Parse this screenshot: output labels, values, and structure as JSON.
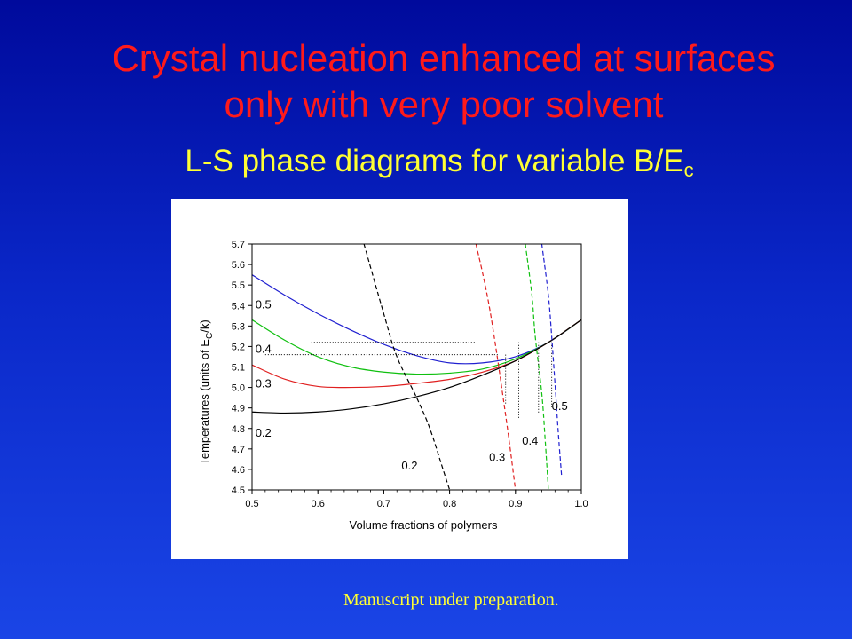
{
  "slide": {
    "title_line1": "Crystal nucleation enhanced at surfaces",
    "title_line2": "only with very poor solvent",
    "subtitle_main": "L-S phase diagrams for variable B/E",
    "subtitle_sub": "c",
    "footnote": "Manuscript under preparation."
  },
  "chart_data": {
    "type": "line",
    "xlabel": "Volume fractions of polymers",
    "ylabel_main": "Temperatures (units of E",
    "ylabel_sub": "C",
    "ylabel_end": "/k)",
    "xlim": [
      0.5,
      1.0
    ],
    "ylim": [
      4.5,
      5.7
    ],
    "xticks": [
      "0.5",
      "0.6",
      "0.7",
      "0.8",
      "0.9",
      "1.0"
    ],
    "yticks": [
      "4.5",
      "4.6",
      "4.7",
      "4.8",
      "4.9",
      "5.0",
      "5.1",
      "5.2",
      "5.3",
      "5.4",
      "5.5",
      "5.6",
      "5.7"
    ],
    "grid": false,
    "series": [
      {
        "label": "0.5",
        "style": "solid",
        "color": "#2020d0",
        "x": [
          0.5,
          0.55,
          0.6,
          0.65,
          0.7,
          0.75,
          0.8,
          0.85,
          0.9,
          0.95,
          1.0
        ],
        "y": [
          5.55,
          5.45,
          5.36,
          5.28,
          5.21,
          5.155,
          5.12,
          5.12,
          5.15,
          5.22,
          5.33
        ]
      },
      {
        "label": "0.4",
        "style": "solid",
        "color": "#10c010",
        "x": [
          0.5,
          0.55,
          0.6,
          0.65,
          0.7,
          0.75,
          0.8,
          0.85,
          0.9,
          0.95,
          1.0
        ],
        "y": [
          5.33,
          5.23,
          5.15,
          5.1,
          5.075,
          5.065,
          5.07,
          5.09,
          5.14,
          5.22,
          5.33
        ]
      },
      {
        "label": "0.3",
        "style": "solid",
        "color": "#e02020",
        "x": [
          0.5,
          0.55,
          0.6,
          0.65,
          0.7,
          0.75,
          0.8,
          0.85,
          0.9,
          0.95,
          1.0
        ],
        "y": [
          5.11,
          5.04,
          5.005,
          5.0,
          5.005,
          5.02,
          5.04,
          5.075,
          5.13,
          5.22,
          5.33
        ]
      },
      {
        "label": "0.2",
        "style": "solid",
        "color": "#000000",
        "x": [
          0.5,
          0.55,
          0.6,
          0.65,
          0.7,
          0.75,
          0.8,
          0.85,
          0.9,
          0.95,
          1.0
        ],
        "y": [
          4.88,
          4.875,
          4.88,
          4.895,
          4.92,
          4.955,
          5.0,
          5.06,
          5.13,
          5.22,
          5.33
        ]
      },
      {
        "label": "0.2",
        "style": "dashed",
        "color": "#000000",
        "x": [
          0.67,
          0.7,
          0.72,
          0.75,
          0.77,
          0.79,
          0.8
        ],
        "y": [
          5.7,
          5.36,
          5.15,
          4.95,
          4.8,
          4.6,
          4.5
        ]
      },
      {
        "label": "0.3",
        "style": "dashed",
        "color": "#e02020",
        "x": [
          0.84,
          0.85,
          0.86,
          0.87,
          0.88,
          0.89,
          0.9
        ],
        "y": [
          5.7,
          5.56,
          5.4,
          5.2,
          4.98,
          4.75,
          4.5
        ]
      },
      {
        "label": "0.4",
        "style": "dashed",
        "color": "#10c010",
        "x": [
          0.915,
          0.925,
          0.93,
          0.94,
          0.945,
          0.95
        ],
        "y": [
          5.7,
          5.45,
          5.25,
          4.97,
          4.75,
          4.5
        ]
      },
      {
        "label": "0.5",
        "style": "dashed",
        "color": "#2020d0",
        "x": [
          0.94,
          0.95,
          0.955,
          0.96,
          0.965,
          0.97
        ],
        "y": [
          5.7,
          5.45,
          5.25,
          5.02,
          4.78,
          4.57
        ]
      }
    ],
    "guides": [
      {
        "from": [
          0.59,
          5.22
        ],
        "to": [
          0.84,
          5.22
        ]
      },
      {
        "from": [
          0.52,
          5.16
        ],
        "to": [
          0.875,
          5.16
        ]
      },
      {
        "from": [
          0.885,
          5.16
        ],
        "to": [
          0.885,
          4.92
        ]
      },
      {
        "from": [
          0.905,
          5.22
        ],
        "to": [
          0.905,
          4.85
        ]
      },
      {
        "from": [
          0.935,
          5.22
        ],
        "to": [
          0.935,
          4.87
        ]
      },
      {
        "from": [
          0.955,
          5.22
        ],
        "to": [
          0.955,
          4.9
        ]
      }
    ],
    "annotations": [
      {
        "text": "0.5",
        "x": 0.505,
        "y": 5.385
      },
      {
        "text": "0.4",
        "x": 0.505,
        "y": 5.17
      },
      {
        "text": "0.3",
        "x": 0.505,
        "y": 5.0
      },
      {
        "text": "0.2",
        "x": 0.505,
        "y": 4.76
      },
      {
        "text": "0.2",
        "x": 0.727,
        "y": 4.6
      },
      {
        "text": "0.3",
        "x": 0.86,
        "y": 4.64
      },
      {
        "text": "0.4",
        "x": 0.91,
        "y": 4.72
      },
      {
        "text": "0.5",
        "x": 0.955,
        "y": 4.89
      }
    ]
  }
}
